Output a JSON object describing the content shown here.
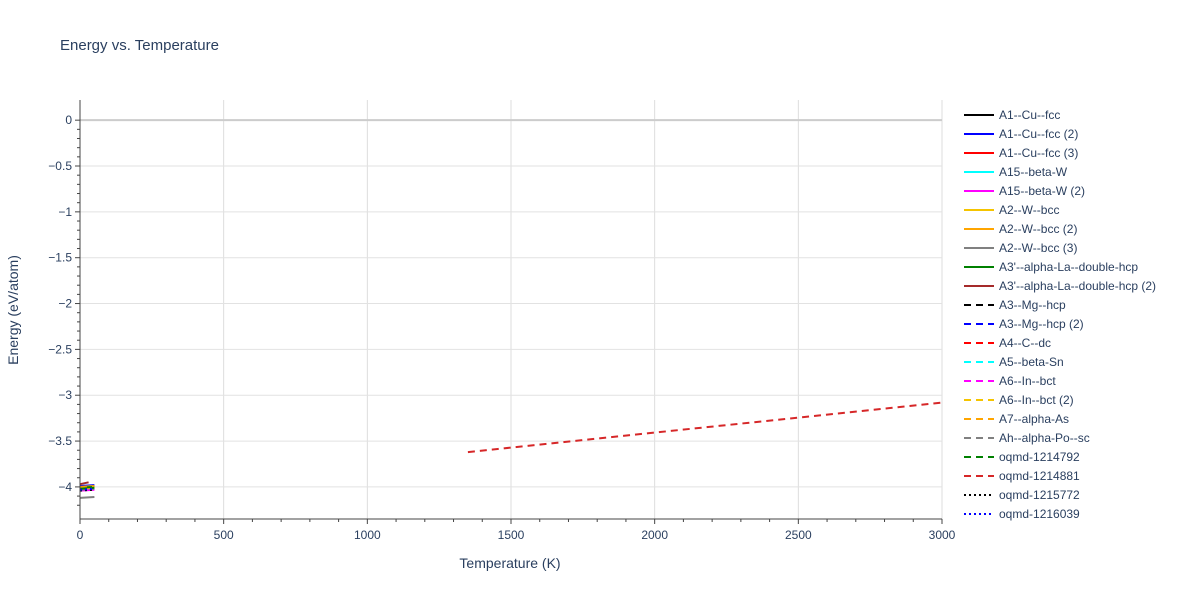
{
  "chart_data": {
    "type": "line",
    "title": "Energy vs. Temperature",
    "xlabel": "Temperature (K)",
    "ylabel": "Energy (eV/atom)",
    "xlim": [
      0,
      3000
    ],
    "ylim": [
      -4.35,
      0.22
    ],
    "x_ticks": [
      0,
      500,
      1000,
      1500,
      2000,
      2500,
      3000
    ],
    "x_tick_labels": [
      "0",
      "500",
      "1000",
      "1500",
      "2000",
      "2500",
      "3000"
    ],
    "y_ticks": [
      0,
      -0.5,
      -1,
      -1.5,
      -2,
      -2.5,
      -3,
      -3.5,
      -4
    ],
    "y_tick_labels": [
      "0",
      "−0.5",
      "−1",
      "−1.5",
      "−2",
      "−2.5",
      "−3",
      "−3.5",
      "−4"
    ],
    "grid": true,
    "legend_position": "right",
    "series": [
      {
        "name": "A1--Cu--fcc",
        "color": "#000000",
        "dash": "solid",
        "x": [
          0,
          50
        ],
        "y": [
          -4.01,
          -3.99
        ]
      },
      {
        "name": "A1--Cu--fcc (2)",
        "color": "#0000ff",
        "dash": "solid",
        "x": [
          0,
          50
        ],
        "y": [
          -3.99,
          -3.98
        ]
      },
      {
        "name": "A1--Cu--fcc (3)",
        "color": "#ff0000",
        "dash": "solid",
        "x": [
          0,
          50
        ],
        "y": [
          -4.02,
          -4.0
        ]
      },
      {
        "name": "A15--beta-W",
        "color": "#00ffff",
        "dash": "solid",
        "x": [
          0,
          50
        ],
        "y": [
          -4.03,
          -4.02
        ]
      },
      {
        "name": "A15--beta-W (2)",
        "color": "#ff00ff",
        "dash": "solid",
        "x": [
          0,
          50
        ],
        "y": [
          -4.04,
          -4.03
        ]
      },
      {
        "name": "A2--W--bcc",
        "color": "#f5c400",
        "dash": "solid",
        "x": [
          0,
          50
        ],
        "y": [
          -4.02,
          -4.01
        ]
      },
      {
        "name": "A2--W--bcc (2)",
        "color": "#ffa500",
        "dash": "solid",
        "x": [
          0,
          50
        ],
        "y": [
          -4.0,
          -3.99
        ]
      },
      {
        "name": "A2--W--bcc (3)",
        "color": "#808080",
        "dash": "solid",
        "x": [
          0,
          50
        ],
        "y": [
          -4.12,
          -4.11
        ]
      },
      {
        "name": "A3'--alpha-La--double-hcp",
        "color": "#008000",
        "dash": "solid",
        "x": [
          0,
          50
        ],
        "y": [
          -4.01,
          -4.0
        ]
      },
      {
        "name": "A3'--alpha-La--double-hcp (2)",
        "color": "#a52a2a",
        "dash": "solid",
        "x": [
          0,
          30
        ],
        "y": [
          -3.97,
          -3.95
        ]
      },
      {
        "name": "A3--Mg--hcp",
        "color": "#000000",
        "dash": "dash",
        "x": [
          0,
          50
        ],
        "y": [
          -4.02,
          -4.01
        ]
      },
      {
        "name": "A3--Mg--hcp (2)",
        "color": "#0000ff",
        "dash": "dash",
        "x": [
          0,
          50
        ],
        "y": [
          -4.03,
          -4.02
        ]
      },
      {
        "name": "A4--C--dc",
        "color": "#ff0000",
        "dash": "dash",
        "x": [
          0,
          50
        ],
        "y": [
          -4.01,
          -4.0
        ]
      },
      {
        "name": "A5--beta-Sn",
        "color": "#00ffff",
        "dash": "dash",
        "x": [
          0,
          50
        ],
        "y": [
          -4.02,
          -4.01
        ]
      },
      {
        "name": "A6--In--bct",
        "color": "#ff00ff",
        "dash": "dash",
        "x": [
          0,
          50
        ],
        "y": [
          -4.03,
          -4.02
        ]
      },
      {
        "name": "A6--In--bct (2)",
        "color": "#f5c400",
        "dash": "dash",
        "x": [
          0,
          50
        ],
        "y": [
          -4.02,
          -4.01
        ]
      },
      {
        "name": "A7--alpha-As",
        "color": "#ffa500",
        "dash": "dash",
        "x": [
          0,
          50
        ],
        "y": [
          -4.01,
          -4.0
        ]
      },
      {
        "name": "Ah--alpha-Po--sc",
        "color": "#808080",
        "dash": "dash",
        "x": [
          0,
          50
        ],
        "y": [
          -4.03,
          -4.02
        ]
      },
      {
        "name": "oqmd-1214792",
        "color": "#008000",
        "dash": "dash",
        "x": [
          0,
          50
        ],
        "y": [
          -4.02,
          -4.01
        ]
      },
      {
        "name": "oqmd-1214881",
        "color": "#d62728",
        "dash": "dash",
        "x": [
          1350,
          3000
        ],
        "y": [
          -3.62,
          -3.08
        ]
      },
      {
        "name": "oqmd-1215772",
        "color": "#000000",
        "dash": "dot",
        "x": [
          0,
          50
        ],
        "y": [
          -4.04,
          -4.03
        ]
      },
      {
        "name": "oqmd-1216039",
        "color": "#0000ff",
        "dash": "dot",
        "x": [
          0,
          50
        ],
        "y": [
          -4.03,
          -4.02
        ]
      }
    ]
  }
}
